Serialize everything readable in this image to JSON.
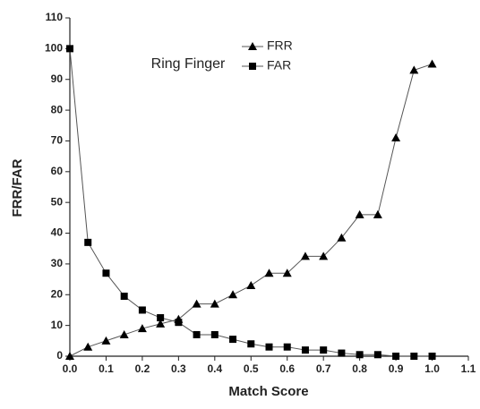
{
  "chart_data": {
    "type": "line",
    "x_label": "Match Score",
    "y_label": "FRR/FAR",
    "legend_title": "Ring Finger",
    "x": [
      0.0,
      0.05,
      0.1,
      0.15,
      0.2,
      0.25,
      0.3,
      0.35,
      0.4,
      0.45,
      0.5,
      0.55,
      0.6,
      0.65,
      0.7,
      0.75,
      0.8,
      0.85,
      0.9,
      0.95,
      1.0
    ],
    "series": [
      {
        "name": "FRR",
        "color": "#000000",
        "marker": "triangle",
        "values": [
          0,
          3,
          5,
          7,
          9,
          10.5,
          12,
          17,
          17,
          20,
          23,
          27,
          27,
          32.5,
          32.5,
          38.5,
          46,
          46,
          71,
          93,
          95
        ]
      },
      {
        "name": "FAR",
        "color": "#000000",
        "marker": "square",
        "values": [
          100,
          37,
          27,
          19.5,
          15,
          12.5,
          11,
          7,
          7,
          5.5,
          4,
          3,
          3,
          2,
          2,
          1,
          0.5,
          0.5,
          0,
          0,
          0
        ]
      }
    ],
    "xlim": [
      0,
      1.1
    ],
    "xticks": [
      {
        "value": 0,
        "label": "0.0"
      },
      0.1,
      0.2,
      0.3,
      0.4,
      0.5,
      0.6,
      0.7,
      0.8,
      0.9,
      {
        "value": 1,
        "label": "1.0"
      },
      1.1
    ],
    "ylim": [
      0,
      110
    ],
    "yticks": [
      0,
      10,
      20,
      30,
      40,
      50,
      60,
      70,
      80,
      90,
      100,
      110
    ],
    "line_color": "#555555"
  }
}
